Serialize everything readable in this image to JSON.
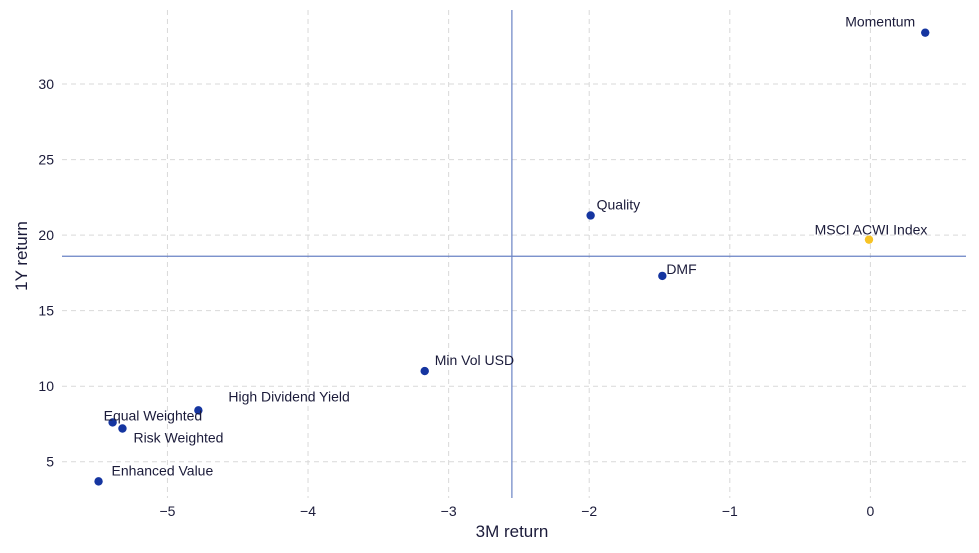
{
  "chart_data": {
    "type": "scatter",
    "title": "",
    "xlabel": "3M return",
    "ylabel": "1Y return",
    "xlim": [
      -5.75,
      0.68
    ],
    "ylim": [
      2.6,
      34.9
    ],
    "xticks": [
      -5,
      -4,
      -3,
      -2,
      -1,
      0
    ],
    "yticks": [
      5,
      10,
      15,
      20,
      25,
      30
    ],
    "xtick_labels": [
      "−5",
      "−4",
      "−3",
      "−2",
      "−1",
      "0"
    ],
    "ytick_labels": [
      "5",
      "10",
      "15",
      "20",
      "25",
      "30"
    ],
    "grid": true,
    "reference_lines": {
      "x": -2.55,
      "y": 18.6
    },
    "colors": {
      "series": "#1535a0",
      "highlight": "#f7c325",
      "reference": "#6a83c4"
    },
    "points": [
      {
        "label": "Momentum",
        "x": 0.39,
        "y": 33.4,
        "highlight": false
      },
      {
        "label": "Quality",
        "x": -1.99,
        "y": 21.3,
        "highlight": false
      },
      {
        "label": "MSCI ACWI Index",
        "x": -0.01,
        "y": 19.7,
        "highlight": true
      },
      {
        "label": "DMF",
        "x": -1.48,
        "y": 17.3,
        "highlight": false
      },
      {
        "label": "Min Vol USD",
        "x": -3.17,
        "y": 11.0,
        "highlight": false
      },
      {
        "label": "High Dividend Yield",
        "x": -4.78,
        "y": 8.4,
        "highlight": false
      },
      {
        "label": "Equal Weighted",
        "x": -5.39,
        "y": 7.6,
        "highlight": false
      },
      {
        "label": "Risk Weighted",
        "x": -5.32,
        "y": 7.2,
        "highlight": false
      },
      {
        "label": "Enhanced Value",
        "x": -5.49,
        "y": 3.7,
        "highlight": false
      }
    ]
  }
}
